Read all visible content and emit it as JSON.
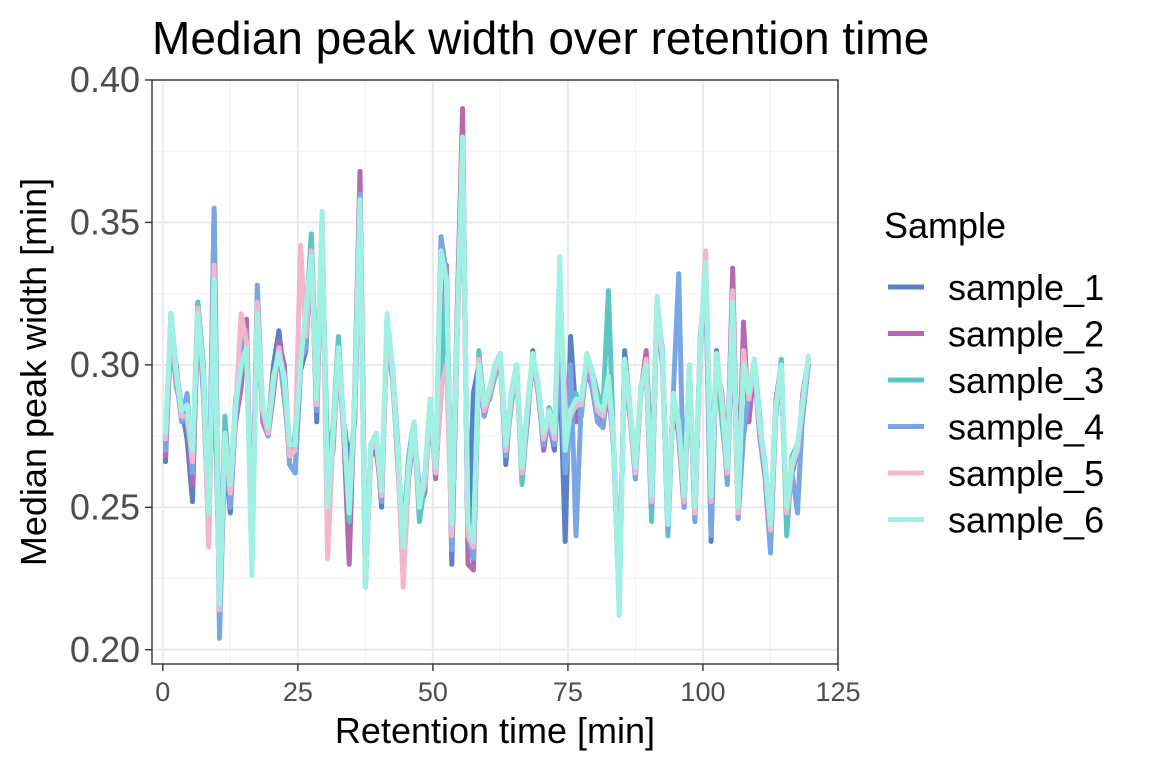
{
  "chart_data": {
    "type": "line",
    "title": "Median peak width over retention time",
    "xlabel": "Retention time [min]",
    "ylabel": "Median peak width [min]",
    "xlim": [
      -2,
      125
    ],
    "ylim": [
      0.195,
      0.4
    ],
    "x_ticks": [
      0,
      25,
      50,
      75,
      100,
      125
    ],
    "y_ticks": [
      0.2,
      0.25,
      0.3,
      0.35,
      0.4
    ],
    "x_tick_labels": [
      "0",
      "25",
      "50",
      "75",
      "100",
      "125"
    ],
    "y_tick_labels": [
      "0.20",
      "0.25",
      "0.30",
      "0.35",
      "0.40"
    ],
    "grid": true,
    "legend_title": "Sample",
    "legend_position": "right",
    "x": [
      0.5,
      1.5,
      2.5,
      3.5,
      4.5,
      5.5,
      6.5,
      7.5,
      8.5,
      9.5,
      10.5,
      11.5,
      12.5,
      13.5,
      14.5,
      15.5,
      16.5,
      17.5,
      18.5,
      19.5,
      20.5,
      21.5,
      22.5,
      23.5,
      24.5,
      25.5,
      26.5,
      27.5,
      28.5,
      29.5,
      30.5,
      31.5,
      32.5,
      33.5,
      34.5,
      35.5,
      36.5,
      37.5,
      38.5,
      39.5,
      40.5,
      41.5,
      42.5,
      43.5,
      44.5,
      45.5,
      46.5,
      47.5,
      48.5,
      49.5,
      50.5,
      51.5,
      52.5,
      53.5,
      54.5,
      55.5,
      56.5,
      57.5,
      58.5,
      59.5,
      60.5,
      61.5,
      62.5,
      63.5,
      64.5,
      65.5,
      66.5,
      67.5,
      68.5,
      69.5,
      70.5,
      71.5,
      72.5,
      73.5,
      74.5,
      75.5,
      76.5,
      77.5,
      78.5,
      79.5,
      80.5,
      81.5,
      82.5,
      83.5,
      84.5,
      85.5,
      86.5,
      87.5,
      88.5,
      89.5,
      90.5,
      91.5,
      92.5,
      93.5,
      94.5,
      95.5,
      96.5,
      97.5,
      98.5,
      99.5,
      100.5,
      101.5,
      102.5,
      103.5,
      104.5,
      105.5,
      106.5,
      107.5,
      108.5,
      109.5,
      110.5,
      111.5,
      112.5,
      113.5,
      114.5,
      115.5,
      116.5,
      117.5,
      118.5,
      119.5
    ],
    "series": [
      {
        "name": "sample_1",
        "color": "#5a82c2",
        "values": [
          0.266,
          0.318,
          0.298,
          0.285,
          0.274,
          0.252,
          0.322,
          0.292,
          0.24,
          0.354,
          0.212,
          0.268,
          0.248,
          0.285,
          0.3,
          0.31,
          0.23,
          0.32,
          0.285,
          0.278,
          0.3,
          0.312,
          0.295,
          0.265,
          0.262,
          0.298,
          0.305,
          0.344,
          0.28,
          0.35,
          0.255,
          0.275,
          0.3,
          0.28,
          0.265,
          0.28,
          0.352,
          0.222,
          0.27,
          0.275,
          0.25,
          0.315,
          0.3,
          0.272,
          0.225,
          0.26,
          0.278,
          0.255,
          0.26,
          0.285,
          0.262,
          0.29,
          0.332,
          0.23,
          0.31,
          0.378,
          0.236,
          0.29,
          0.3,
          0.282,
          0.29,
          0.3,
          0.304,
          0.265,
          0.29,
          0.3,
          0.262,
          0.28,
          0.305,
          0.29,
          0.275,
          0.28,
          0.27,
          0.3,
          0.238,
          0.31,
          0.282,
          0.288,
          0.298,
          0.292,
          0.28,
          0.278,
          0.295,
          0.27,
          0.215,
          0.305,
          0.285,
          0.26,
          0.292,
          0.3,
          0.25,
          0.322,
          0.305,
          0.245,
          0.29,
          0.275,
          0.25,
          0.3,
          0.245,
          0.31,
          0.33,
          0.238,
          0.305,
          0.285,
          0.26,
          0.32,
          0.25,
          0.275,
          0.29,
          0.3,
          0.275,
          0.262,
          0.238,
          0.285,
          0.295,
          0.25,
          0.262,
          0.27,
          0.285,
          0.3
        ]
      },
      {
        "name": "sample_2",
        "color": "#b46ab0",
        "values": [
          0.268,
          0.31,
          0.3,
          0.28,
          0.285,
          0.258,
          0.316,
          0.3,
          0.238,
          0.33,
          0.214,
          0.27,
          0.26,
          0.28,
          0.292,
          0.316,
          0.232,
          0.325,
          0.28,
          0.275,
          0.29,
          0.308,
          0.3,
          0.268,
          0.27,
          0.3,
          0.312,
          0.34,
          0.285,
          0.345,
          0.258,
          0.27,
          0.305,
          0.275,
          0.23,
          0.29,
          0.368,
          0.225,
          0.268,
          0.27,
          0.255,
          0.312,
          0.298,
          0.265,
          0.23,
          0.262,
          0.275,
          0.25,
          0.255,
          0.288,
          0.26,
          0.295,
          0.335,
          0.24,
          0.32,
          0.39,
          0.23,
          0.228,
          0.3,
          0.285,
          0.292,
          0.298,
          0.3,
          0.275,
          0.288,
          0.295,
          0.266,
          0.285,
          0.3,
          0.292,
          0.27,
          0.282,
          0.275,
          0.318,
          0.29,
          0.285,
          0.28,
          0.285,
          0.3,
          0.295,
          0.282,
          0.28,
          0.29,
          0.272,
          0.22,
          0.3,
          0.282,
          0.265,
          0.29,
          0.305,
          0.262,
          0.32,
          0.3,
          0.25,
          0.285,
          0.28,
          0.255,
          0.295,
          0.25,
          0.305,
          0.335,
          0.26,
          0.3,
          0.29,
          0.265,
          0.334,
          0.25,
          0.315,
          0.28,
          0.3,
          0.28,
          0.265,
          0.242,
          0.288,
          0.3,
          0.245,
          0.265,
          0.268,
          0.29,
          0.302
        ]
      },
      {
        "name": "sample_3",
        "color": "#5cc6c2",
        "values": [
          0.272,
          0.312,
          0.292,
          0.285,
          0.28,
          0.268,
          0.322,
          0.3,
          0.25,
          0.3,
          0.22,
          0.282,
          0.255,
          0.288,
          0.298,
          0.306,
          0.24,
          0.318,
          0.282,
          0.28,
          0.295,
          0.305,
          0.288,
          0.27,
          0.275,
          0.305,
          0.315,
          0.346,
          0.29,
          0.34,
          0.268,
          0.278,
          0.31,
          0.278,
          0.245,
          0.285,
          0.355,
          0.228,
          0.272,
          0.272,
          0.26,
          0.31,
          0.295,
          0.268,
          0.24,
          0.268,
          0.28,
          0.245,
          0.258,
          0.282,
          0.268,
          0.292,
          0.33,
          0.245,
          0.315,
          0.372,
          0.245,
          0.24,
          0.305,
          0.285,
          0.288,
          0.296,
          0.3,
          0.27,
          0.285,
          0.3,
          0.258,
          0.282,
          0.302,
          0.29,
          0.272,
          0.285,
          0.278,
          0.305,
          0.262,
          0.28,
          0.29,
          0.282,
          0.302,
          0.298,
          0.29,
          0.285,
          0.326,
          0.27,
          0.225,
          0.298,
          0.282,
          0.262,
          0.292,
          0.3,
          0.245,
          0.322,
          0.302,
          0.24,
          0.288,
          0.278,
          0.255,
          0.298,
          0.248,
          0.308,
          0.33,
          0.262,
          0.302,
          0.28,
          0.262,
          0.322,
          0.25,
          0.3,
          0.288,
          0.302,
          0.282,
          0.262,
          0.24,
          0.282,
          0.302,
          0.24,
          0.268,
          0.272,
          0.282,
          0.3
        ]
      },
      {
        "name": "sample_4",
        "color": "#7aa6e6",
        "values": [
          0.27,
          0.316,
          0.295,
          0.28,
          0.29,
          0.262,
          0.318,
          0.29,
          0.245,
          0.355,
          0.204,
          0.272,
          0.25,
          0.282,
          0.302,
          0.312,
          0.235,
          0.328,
          0.282,
          0.275,
          0.292,
          0.306,
          0.292,
          0.265,
          0.262,
          0.302,
          0.306,
          0.338,
          0.284,
          0.352,
          0.252,
          0.272,
          0.302,
          0.276,
          0.255,
          0.282,
          0.36,
          0.222,
          0.27,
          0.276,
          0.252,
          0.312,
          0.3,
          0.27,
          0.226,
          0.262,
          0.276,
          0.252,
          0.262,
          0.286,
          0.262,
          0.345,
          0.332,
          0.235,
          0.312,
          0.38,
          0.24,
          0.232,
          0.3,
          0.282,
          0.29,
          0.3,
          0.302,
          0.268,
          0.29,
          0.3,
          0.262,
          0.282,
          0.304,
          0.29,
          0.272,
          0.28,
          0.272,
          0.3,
          0.262,
          0.3,
          0.24,
          0.288,
          0.298,
          0.292,
          0.28,
          0.278,
          0.295,
          0.27,
          0.215,
          0.302,
          0.282,
          0.26,
          0.29,
          0.3,
          0.25,
          0.32,
          0.302,
          0.242,
          0.29,
          0.332,
          0.25,
          0.298,
          0.245,
          0.308,
          0.33,
          0.24,
          0.304,
          0.286,
          0.258,
          0.32,
          0.246,
          0.275,
          0.29,
          0.3,
          0.275,
          0.26,
          0.234,
          0.285,
          0.295,
          0.25,
          0.262,
          0.248,
          0.285,
          0.3
        ]
      },
      {
        "name": "sample_5",
        "color": "#f3b6cc",
        "values": [
          0.274,
          0.314,
          0.296,
          0.282,
          0.282,
          0.266,
          0.32,
          0.296,
          0.236,
          0.335,
          0.214,
          0.274,
          0.255,
          0.284,
          0.318,
          0.308,
          0.234,
          0.322,
          0.284,
          0.276,
          0.294,
          0.306,
          0.294,
          0.268,
          0.27,
          0.342,
          0.31,
          0.34,
          0.286,
          0.348,
          0.232,
          0.274,
          0.304,
          0.278,
          0.25,
          0.286,
          0.35,
          0.224,
          0.27,
          0.274,
          0.254,
          0.312,
          0.298,
          0.268,
          0.222,
          0.262,
          0.278,
          0.252,
          0.258,
          0.286,
          0.262,
          0.292,
          0.3,
          0.24,
          0.312,
          0.37,
          0.24,
          0.236,
          0.302,
          0.284,
          0.29,
          0.298,
          0.302,
          0.27,
          0.288,
          0.298,
          0.262,
          0.284,
          0.302,
          0.292,
          0.274,
          0.282,
          0.274,
          0.325,
          0.285,
          0.282,
          0.286,
          0.286,
          0.302,
          0.296,
          0.284,
          0.282,
          0.294,
          0.272,
          0.218,
          0.3,
          0.284,
          0.262,
          0.29,
          0.302,
          0.252,
          0.322,
          0.302,
          0.246,
          0.288,
          0.278,
          0.252,
          0.298,
          0.248,
          0.306,
          0.34,
          0.252,
          0.302,
          0.286,
          0.262,
          0.326,
          0.248,
          0.305,
          0.288,
          0.3,
          0.278,
          0.264,
          0.242,
          0.285,
          0.298,
          0.248,
          0.264,
          0.27,
          0.286,
          0.302
        ]
      },
      {
        "name": "sample_6",
        "color": "#a0f0e4",
        "values": [
          0.276,
          0.318,
          0.298,
          0.284,
          0.286,
          0.27,
          0.318,
          0.298,
          0.248,
          0.33,
          0.216,
          0.276,
          0.258,
          0.286,
          0.3,
          0.306,
          0.226,
          0.318,
          0.286,
          0.278,
          0.296,
          0.304,
          0.296,
          0.272,
          0.272,
          0.3,
          0.32,
          0.338,
          0.288,
          0.354,
          0.25,
          0.276,
          0.306,
          0.28,
          0.248,
          0.288,
          0.358,
          0.222,
          0.272,
          0.276,
          0.256,
          0.318,
          0.3,
          0.27,
          0.236,
          0.264,
          0.28,
          0.25,
          0.262,
          0.288,
          0.264,
          0.34,
          0.33,
          0.244,
          0.314,
          0.38,
          0.244,
          0.238,
          0.3,
          0.286,
          0.292,
          0.3,
          0.304,
          0.272,
          0.29,
          0.3,
          0.264,
          0.286,
          0.304,
          0.294,
          0.276,
          0.284,
          0.276,
          0.338,
          0.27,
          0.284,
          0.288,
          0.288,
          0.304,
          0.298,
          0.286,
          0.284,
          0.296,
          0.274,
          0.212,
          0.302,
          0.286,
          0.264,
          0.292,
          0.3,
          0.254,
          0.324,
          0.304,
          0.244,
          0.29,
          0.28,
          0.254,
          0.3,
          0.25,
          0.308,
          0.336,
          0.254,
          0.304,
          0.288,
          0.264,
          0.322,
          0.25,
          0.3,
          0.29,
          0.302,
          0.28,
          0.266,
          0.244,
          0.286,
          0.3,
          0.25,
          0.266,
          0.272,
          0.288,
          0.303
        ]
      }
    ]
  }
}
